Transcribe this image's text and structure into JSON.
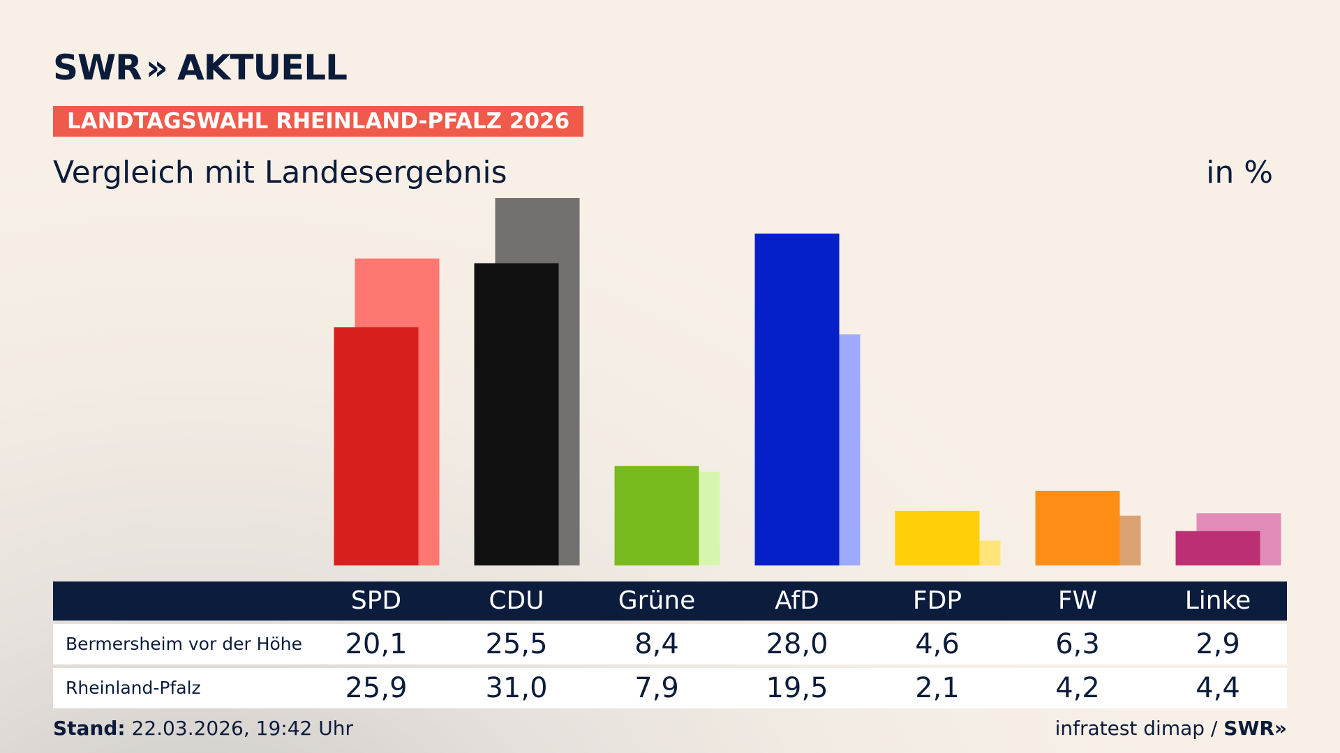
{
  "header": {
    "brand_left": "SWR",
    "brand_arrows": "»",
    "brand_right": "AKTUELL",
    "kicker": "LANDTAGSWAHL RHEINLAND-PFALZ 2026",
    "subtitle": "Vergleich mit Landesergebnis",
    "unit": "in %"
  },
  "table": {
    "rows": [
      {
        "label": "Bermersheim vor der Höhe",
        "values": [
          "20,1",
          "25,5",
          "8,4",
          "28,0",
          "4,6",
          "6,3",
          "2,9"
        ]
      },
      {
        "label": "Rheinland-Pfalz",
        "values": [
          "25,9",
          "31,0",
          "7,9",
          "19,5",
          "2,1",
          "4,2",
          "4,4"
        ]
      }
    ]
  },
  "chart_data": {
    "type": "bar",
    "categories": [
      "SPD",
      "CDU",
      "Grüne",
      "AfD",
      "FDP",
      "FW",
      "Linke"
    ],
    "series": [
      {
        "name": "Bermersheim vor der Höhe",
        "values": [
          20.1,
          25.5,
          8.4,
          28.0,
          4.6,
          6.3,
          2.9
        ],
        "colors": [
          "#d71f20",
          "#111111",
          "#79bb1f",
          "#0520c9",
          "#ffd00a",
          "#ff8e17",
          "#bc2f74"
        ]
      },
      {
        "name": "Rheinland-Pfalz",
        "values": [
          25.9,
          31.0,
          7.9,
          19.5,
          2.1,
          4.2,
          4.4
        ],
        "colors": [
          "#ff7770",
          "#73716f",
          "#d6f5ae",
          "#9eaaff",
          "#ffe47a",
          "#daa472",
          "#e08cb8"
        ]
      }
    ],
    "title": "Vergleich mit Landesergebnis",
    "ylabel": "in %"
  },
  "footer": {
    "stand_label": "Stand:",
    "stand_value": "22.03.2026, 19:42 Uhr",
    "source": "infratest dimap /",
    "logo": "SWR»"
  }
}
